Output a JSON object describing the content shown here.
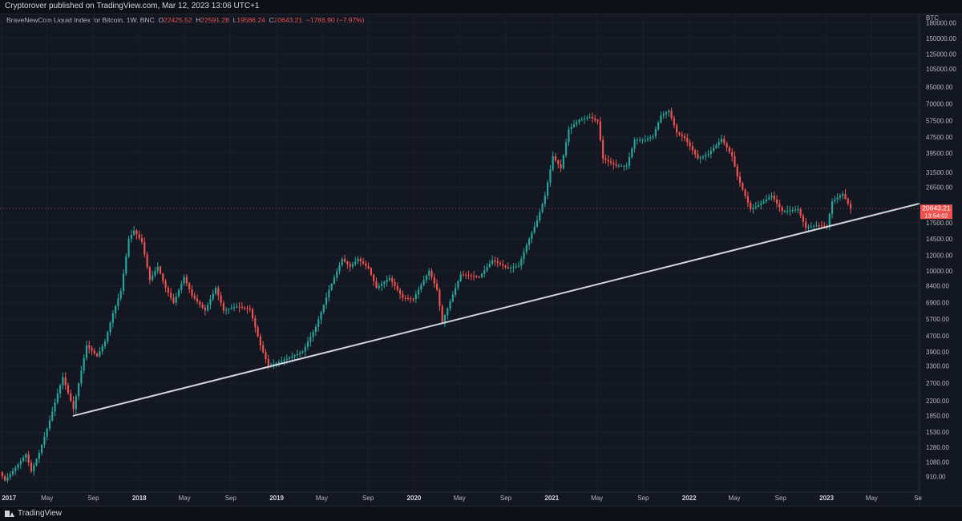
{
  "header": {
    "publish_text": "Cryptorover published on TradingView.com, Mar 12, 2023 13:06 UTC+1"
  },
  "legend": {
    "symbol": "BraveNewCoin Liquid Index for Bitcoin, 1W, BNC",
    "open_label": "O",
    "open": "22425.52",
    "high_label": "H",
    "high": "22591.28",
    "low_label": "L",
    "low": "19586.24",
    "close_label": "C",
    "close": "20643.21",
    "change": "−1786.90 (−7.97%)"
  },
  "price_axis": {
    "currency": "BTC",
    "current_price": "20643.21",
    "countdown": "13:54:02"
  },
  "footer": {
    "brand": "TradingView"
  },
  "colors": {
    "background": "#131722",
    "up": "#26a69a",
    "down": "#ef5350",
    "trendline": "#d1d4dc",
    "text": "#b2b5be"
  },
  "chart_data": {
    "type": "candlestick",
    "title": "BraveNewCoin Liquid Index for Bitcoin, 1W, BNC",
    "scale": "log",
    "y_ticks": [
      910,
      1080,
      1280,
      1530,
      1850,
      2200,
      2700,
      3300,
      3900,
      4700,
      5700,
      6900,
      8400,
      10000,
      12000,
      14500,
      17500,
      26500,
      31500,
      39500,
      47500,
      57500,
      70000,
      85000,
      105000,
      125000,
      150000,
      180000
    ],
    "y_tick_labels": [
      "910.00",
      "1080.00",
      "1280.00",
      "1530.00",
      "1850.00",
      "2200.00",
      "2700.00",
      "3300.00",
      "3900.00",
      "4700.00",
      "5700.00",
      "6900.00",
      "8400.00",
      "10000.00",
      "12000.00",
      "14500.00",
      "17500.00",
      "26500.00",
      "31500.00",
      "39500.00",
      "47500.00",
      "57500.00",
      "70000.00",
      "85000.00",
      "105000.00",
      "125000.00",
      "150000.00",
      "180000.00"
    ],
    "ylim": [
      760,
      200000
    ],
    "x_ticks": [
      "2017-01-01",
      "2017-05-01",
      "2017-09-01",
      "2018-01-01",
      "2018-05-01",
      "2018-09-01",
      "2019-01-01",
      "2019-05-01",
      "2019-09-01",
      "2020-01-01",
      "2020-05-01",
      "2020-09-01",
      "2021-01-01",
      "2021-05-01",
      "2021-09-01",
      "2022-01-01",
      "2022-05-01",
      "2022-09-01",
      "2023-01-01",
      "2023-05-01",
      "2023-09-01"
    ],
    "x_tick_labels": [
      "2017",
      "May",
      "Sep",
      "2018",
      "May",
      "Sep",
      "2019",
      "May",
      "Sep",
      "2020",
      "May",
      "Sep",
      "2021",
      "May",
      "Sep",
      "2022",
      "May",
      "Sep",
      "2023",
      "May",
      "Se"
    ],
    "xlim": [
      "2016-12-27",
      "2023-09-05"
    ],
    "weekly_close": [
      [
        "2016-12-26",
        960
      ],
      [
        "2017-01-09",
        870
      ],
      [
        "2017-02-06",
        1010
      ],
      [
        "2017-03-06",
        1180
      ],
      [
        "2017-03-20",
        970
      ],
      [
        "2017-04-10",
        1200
      ],
      [
        "2017-05-08",
        1750
      ],
      [
        "2017-05-29",
        2400
      ],
      [
        "2017-06-12",
        2900
      ],
      [
        "2017-07-10",
        2000
      ],
      [
        "2017-07-24",
        2700
      ],
      [
        "2017-08-14",
        4200
      ],
      [
        "2017-09-11",
        3700
      ],
      [
        "2017-10-02",
        4400
      ],
      [
        "2017-10-23",
        6100
      ],
      [
        "2017-11-13",
        7900
      ],
      [
        "2017-12-04",
        14500
      ],
      [
        "2017-12-18",
        16000
      ],
      [
        "2018-01-08",
        14000
      ],
      [
        "2018-01-29",
        9000
      ],
      [
        "2018-02-19",
        10500
      ],
      [
        "2018-03-12",
        8200
      ],
      [
        "2018-04-02",
        6900
      ],
      [
        "2018-04-30",
        9300
      ],
      [
        "2018-05-21",
        7500
      ],
      [
        "2018-06-25",
        6300
      ],
      [
        "2018-07-23",
        8200
      ],
      [
        "2018-08-13",
        6300
      ],
      [
        "2018-09-17",
        6600
      ],
      [
        "2018-10-22",
        6400
      ],
      [
        "2018-11-19",
        4200
      ],
      [
        "2018-12-10",
        3300
      ],
      [
        "2019-01-21",
        3550
      ],
      [
        "2019-03-11",
        3900
      ],
      [
        "2019-04-15",
        5200
      ],
      [
        "2019-05-20",
        8000
      ],
      [
        "2019-06-24",
        11500
      ],
      [
        "2019-07-15",
        10500
      ],
      [
        "2019-08-05",
        11500
      ],
      [
        "2019-09-02",
        10300
      ],
      [
        "2019-09-23",
        8200
      ],
      [
        "2019-10-28",
        9200
      ],
      [
        "2019-12-02",
        7300
      ],
      [
        "2019-12-30",
        7200
      ],
      [
        "2020-02-10",
        10000
      ],
      [
        "2020-03-02",
        8000
      ],
      [
        "2020-03-16",
        5500
      ],
      [
        "2020-04-06",
        7000
      ],
      [
        "2020-05-04",
        9600
      ],
      [
        "2020-06-22",
        9300
      ],
      [
        "2020-07-27",
        11300
      ],
      [
        "2020-09-07",
        10300
      ],
      [
        "2020-10-05",
        10600
      ],
      [
        "2020-10-26",
        13500
      ],
      [
        "2020-11-23",
        18000
      ],
      [
        "2020-12-14",
        24000
      ],
      [
        "2021-01-04",
        38000
      ],
      [
        "2021-01-25",
        33000
      ],
      [
        "2021-02-15",
        52000
      ],
      [
        "2021-03-15",
        58000
      ],
      [
        "2021-04-12",
        60000
      ],
      [
        "2021-05-03",
        57000
      ],
      [
        "2021-05-17",
        37000
      ],
      [
        "2021-06-21",
        34000
      ],
      [
        "2021-07-19",
        34000
      ],
      [
        "2021-08-09",
        46000
      ],
      [
        "2021-09-06",
        46000
      ],
      [
        "2021-09-27",
        48000
      ],
      [
        "2021-10-18",
        61000
      ],
      [
        "2021-11-08",
        64500
      ],
      [
        "2021-11-29",
        50000
      ],
      [
        "2021-12-20",
        47000
      ],
      [
        "2022-01-24",
        37000
      ],
      [
        "2022-02-21",
        39000
      ],
      [
        "2022-03-28",
        46500
      ],
      [
        "2022-04-25",
        38000
      ],
      [
        "2022-05-09",
        30000
      ],
      [
        "2022-06-13",
        20500
      ],
      [
        "2022-07-04",
        21500
      ],
      [
        "2022-08-08",
        24000
      ],
      [
        "2022-09-05",
        20000
      ],
      [
        "2022-10-17",
        20500
      ],
      [
        "2022-11-07",
        16500
      ],
      [
        "2022-12-05",
        17000
      ],
      [
        "2023-01-02",
        16800
      ],
      [
        "2023-01-16",
        22500
      ],
      [
        "2023-02-13",
        24500
      ],
      [
        "2023-03-06",
        20643
      ]
    ],
    "annotations": [
      {
        "type": "trendline",
        "start": [
          "2017-07-10",
          1850
        ],
        "end": [
          "2023-09-05",
          21900
        ]
      }
    ]
  }
}
